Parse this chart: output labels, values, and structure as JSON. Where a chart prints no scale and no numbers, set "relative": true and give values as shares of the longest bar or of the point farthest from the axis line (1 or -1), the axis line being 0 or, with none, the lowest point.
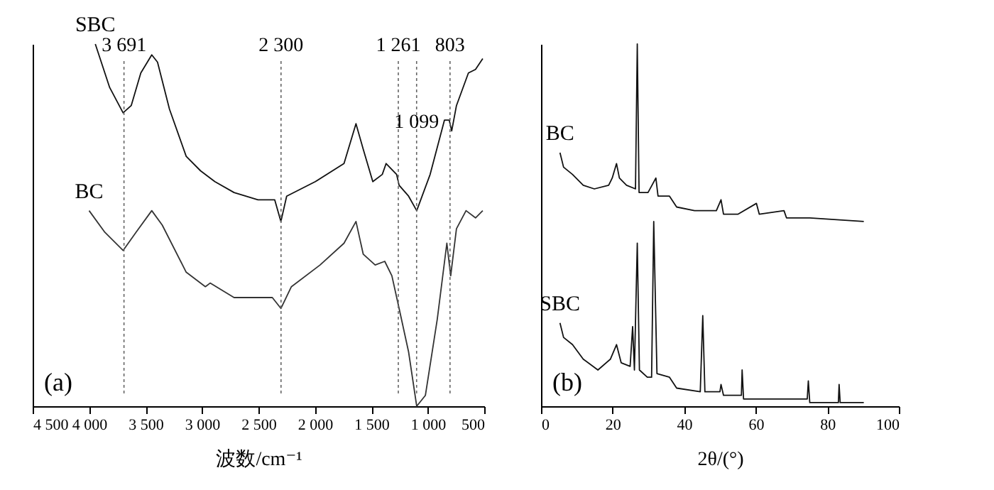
{
  "chart_data": [
    {
      "type": "line",
      "relative": true,
      "xlabel": "波数/cm⁻¹",
      "legend": false,
      "tick_labels": "x",
      "grid": false,
      "annotations": [
        "(a)"
      ],
      "line_style": "solid",
      "xlim": [
        4500,
        500
      ],
      "xticks": [
        {
          "value": 4500,
          "label": "4 500"
        },
        {
          "value": 4000,
          "label": "4 000"
        },
        {
          "value": 3500,
          "label": "3 500"
        },
        {
          "value": 3000,
          "label": "3 000"
        },
        {
          "value": 2500,
          "label": "2 500"
        },
        {
          "value": 2000,
          "label": "2 000"
        },
        {
          "value": 1500,
          "label": "1 500"
        },
        {
          "value": 1000,
          "label": "1 000"
        },
        500
      ],
      "ref_lines": [
        {
          "axis": "x",
          "value": 3691,
          "label": "3 691",
          "line_style": "dotted",
          "color": "#666666"
        },
        {
          "axis": "x",
          "value": 2300,
          "label": "2 300",
          "line_style": "dotted",
          "color": "#666666"
        },
        {
          "axis": "x",
          "value": 1261,
          "label": "1 261",
          "line_style": "dotted",
          "color": "#666666"
        },
        {
          "axis": "x",
          "value": 1099,
          "label": "1 099",
          "line_style": "dotted",
          "color": "#666666"
        },
        {
          "axis": "x",
          "value": 803,
          "label": "803",
          "line_style": "dotted",
          "color": "#666666"
        }
      ],
      "series": [
        {
          "name": "SBC",
          "color": "#111111",
          "x": [
            3945,
            3818,
            3699,
            3627,
            3542,
            3445,
            3394,
            3288,
            3140,
            3013,
            2886,
            2716,
            2504,
            2356,
            2301,
            2250,
            1996,
            1742,
            1636,
            1572,
            1487,
            1403,
            1369,
            1276,
            1254,
            1170,
            1098,
            979,
            852,
            810,
            788,
            746,
            640,
            577,
            513
          ],
          "values": [
            1,
            0.88,
            0.81,
            0.83,
            0.92,
            0.97,
            0.95,
            0.82,
            0.69,
            0.65,
            0.62,
            0.59,
            0.57,
            0.57,
            0.51,
            0.58,
            0.62,
            0.67,
            0.78,
            0.71,
            0.62,
            0.64,
            0.67,
            0.64,
            0.61,
            0.58,
            0.54,
            0.64,
            0.79,
            0.79,
            0.76,
            0.83,
            0.92,
            0.93,
            0.96
          ]
        },
        {
          "name": "BC",
          "color": "#333333",
          "x": [
            4000,
            3860,
            3699,
            3585,
            3445,
            3352,
            3140,
            2970,
            2928,
            2716,
            2504,
            2377,
            2301,
            2208,
            1954,
            1742,
            1636,
            1572,
            1466,
            1381,
            1318,
            1254,
            1170,
            1098,
            1021,
            916,
            831,
            797,
            746,
            661,
            577,
            513
          ],
          "values": [
            0.54,
            0.48,
            0.43,
            0.48,
            0.54,
            0.5,
            0.37,
            0.33,
            0.34,
            0.3,
            0.3,
            0.3,
            0.27,
            0.33,
            0.39,
            0.45,
            0.51,
            0.42,
            0.39,
            0.4,
            0.36,
            0.27,
            0.15,
            0,
            0.03,
            0.24,
            0.45,
            0.36,
            0.49,
            0.54,
            0.52,
            0.54
          ]
        }
      ]
    },
    {
      "type": "line",
      "relative": true,
      "xlabel": "2θ/(°)",
      "legend": false,
      "tick_labels": "x",
      "grid": false,
      "annotations": [
        "(b)"
      ],
      "line_style": "solid",
      "xlim": [
        0,
        100
      ],
      "xticks": [
        0,
        20,
        40,
        60,
        80,
        100
      ],
      "series": [
        {
          "name": "BC",
          "color": "#111111",
          "x": [
            5.3,
            6.3,
            8.8,
            11.8,
            14.9,
            18.9,
            19.9,
            21.1,
            21.9,
            23.9,
            26.4,
            26.9,
            27.4,
            29.9,
            32.1,
            32.7,
            35.9,
            37.9,
            42.9,
            49.0,
            50.3,
            51.0,
            55.0,
            60.2,
            61.0,
            67.9,
            68.6,
            75.1,
            90.2
          ],
          "values": [
            0.7,
            0.66,
            0.64,
            0.61,
            0.6,
            0.61,
            0.63,
            0.67,
            0.63,
            0.61,
            0.6,
            1,
            0.59,
            0.59,
            0.63,
            0.58,
            0.58,
            0.55,
            0.54,
            0.54,
            0.57,
            0.53,
            0.53,
            0.56,
            0.53,
            0.54,
            0.52,
            0.52,
            0.51
          ]
        },
        {
          "name": "SBC",
          "color": "#111111",
          "x": [
            5.3,
            6.3,
            8.8,
            11.8,
            15.9,
            19.4,
            21.1,
            22.4,
            24.9,
            25.6,
            26.1,
            26.9,
            27.5,
            29.7,
            30.9,
            31.5,
            32.4,
            35.9,
            37.9,
            44.5,
            45.2,
            45.8,
            50.0,
            50.3,
            51.0,
            56.0,
            56.2,
            56.6,
            65.1,
            74.4,
            74.7,
            75.1,
            83.1,
            83.3,
            83.6,
            90.2
          ],
          "values": [
            0.23,
            0.19,
            0.17,
            0.13,
            0.1,
            0.13,
            0.17,
            0.12,
            0.11,
            0.22,
            0.1,
            0.45,
            0.1,
            0.08,
            0.08,
            0.51,
            0.09,
            0.08,
            0.05,
            0.04,
            0.25,
            0.04,
            0.04,
            0.06,
            0.03,
            0.03,
            0.1,
            0.02,
            0.02,
            0.02,
            0.07,
            0.01,
            0.01,
            0.06,
            0.01,
            0.01
          ]
        }
      ]
    }
  ]
}
